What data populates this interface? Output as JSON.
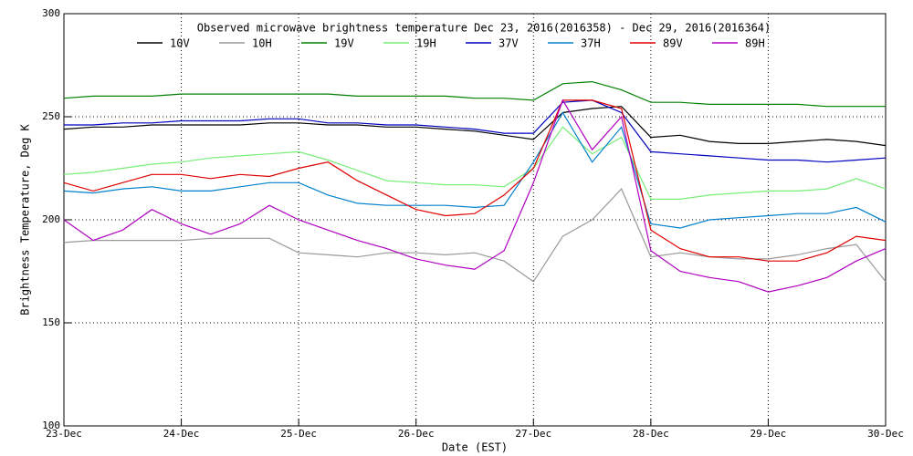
{
  "chart_data": {
    "type": "line",
    "title": "Observed microwave brightness temperature Dec 23, 2016(2016358) - Dec 29, 2016(2016364)",
    "x_label": "Date (EST)",
    "y_label": "Brightness Temperature, Deg K",
    "x": [
      0,
      0.25,
      0.5,
      0.75,
      1,
      1.25,
      1.5,
      1.75,
      2,
      2.25,
      2.5,
      2.75,
      3,
      3.25,
      3.5,
      3.75,
      4,
      4.25,
      4.5,
      4.75,
      5,
      5.25,
      5.5,
      5.75,
      6,
      6.25,
      6.5,
      6.75,
      7
    ],
    "xlim": [
      0,
      7
    ],
    "xticks": [
      {
        "value": 0,
        "label": "23-Dec"
      },
      {
        "value": 1,
        "label": "24-Dec"
      },
      {
        "value": 2,
        "label": "25-Dec"
      },
      {
        "value": 3,
        "label": "26-Dec"
      },
      {
        "value": 4,
        "label": "27-Dec"
      },
      {
        "value": 5,
        "label": "28-Dec"
      },
      {
        "value": 6,
        "label": "29-Dec"
      },
      {
        "value": 7,
        "label": "30-Dec"
      }
    ],
    "ylim": [
      100,
      300
    ],
    "yticks": [
      100,
      150,
      200,
      250,
      300
    ],
    "grid": true,
    "series": [
      {
        "name": "10V",
        "color": "#000000",
        "values": [
          244,
          245,
          245,
          246,
          246,
          246,
          246,
          247,
          247,
          246,
          246,
          245,
          245,
          244,
          243,
          241,
          239,
          252,
          254,
          255,
          240,
          241,
          238,
          237,
          237,
          238,
          239,
          238,
          236
        ]
      },
      {
        "name": "10H",
        "color": "#999999",
        "values": [
          189,
          190,
          190,
          190,
          190,
          191,
          191,
          191,
          184,
          183,
          182,
          184,
          184,
          183,
          184,
          180,
          170,
          192,
          200,
          215,
          182,
          184,
          182,
          181,
          181,
          183,
          186,
          188,
          170
        ]
      },
      {
        "name": "19V",
        "color": "#008000",
        "values": [
          259,
          260,
          260,
          260,
          261,
          261,
          261,
          261,
          261,
          261,
          260,
          260,
          260,
          260,
          259,
          259,
          258,
          266,
          267,
          263,
          257,
          257,
          256,
          256,
          256,
          256,
          255,
          255,
          255
        ]
      },
      {
        "name": "19H",
        "color": "#77ee77",
        "values": [
          222,
          223,
          225,
          227,
          228,
          230,
          231,
          232,
          233,
          229,
          224,
          219,
          218,
          217,
          217,
          216,
          225,
          245,
          232,
          240,
          210,
          210,
          212,
          213,
          214,
          214,
          215,
          220,
          215
        ]
      },
      {
        "name": "37V",
        "color": "#0000c0",
        "values": [
          246,
          246,
          247,
          247,
          248,
          248,
          248,
          249,
          249,
          247,
          247,
          246,
          246,
          245,
          244,
          242,
          242,
          257,
          258,
          252,
          233,
          232,
          231,
          230,
          229,
          229,
          228,
          229,
          230
        ]
      },
      {
        "name": "37H",
        "color": "#0080cc",
        "values": [
          214,
          213,
          215,
          216,
          214,
          214,
          216,
          218,
          218,
          212,
          208,
          207,
          207,
          207,
          206,
          207,
          228,
          252,
          228,
          245,
          198,
          196,
          200,
          201,
          202,
          203,
          203,
          206,
          199
        ]
      },
      {
        "name": "89V",
        "color": "#e00000",
        "values": [
          218,
          214,
          218,
          222,
          222,
          220,
          222,
          221,
          225,
          228,
          219,
          212,
          205,
          202,
          203,
          212,
          225,
          258,
          258,
          254,
          195,
          186,
          182,
          182,
          180,
          180,
          184,
          192,
          190
        ]
      },
      {
        "name": "89H",
        "color": "#b000c0",
        "values": [
          200,
          190,
          195,
          205,
          198,
          193,
          198,
          207,
          200,
          195,
          190,
          186,
          181,
          178,
          176,
          185,
          218,
          258,
          234,
          250,
          185,
          175,
          172,
          170,
          165,
          168,
          172,
          180,
          186
        ]
      }
    ]
  }
}
